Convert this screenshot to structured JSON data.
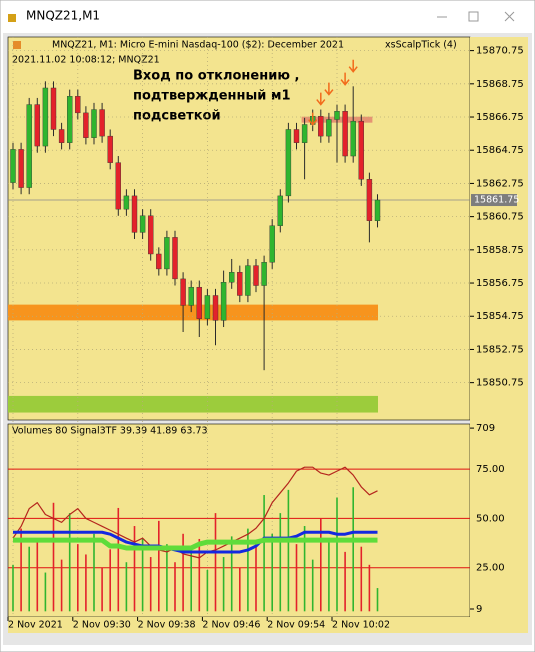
{
  "window": {
    "title": "MNQZ21,M1"
  },
  "chart_data": [
    {
      "type": "candlestick",
      "title": "MNQZ21, M1:  Micro E-mini Nasdaq-100 ($2): December 2021",
      "subtitle": "2021.11.02 10:08:12; MNQZ21",
      "indicator_name": "xsScalpTick (4)",
      "annotation": [
        "Вход по отклонению ,",
        "подтвержденный м1",
        "подсветкой"
      ],
      "categories": [
        "2 Nov 2021",
        null,
        null,
        null,
        null,
        null,
        null,
        null,
        "2 Nov 09:30",
        null,
        null,
        null,
        null,
        null,
        null,
        null,
        "2 Nov 09:38",
        null,
        null,
        null,
        null,
        null,
        null,
        null,
        "2 Nov 09:46",
        null,
        null,
        null,
        null,
        null,
        null,
        null,
        "2 Nov 09:54",
        null,
        null,
        null,
        null,
        null,
        null,
        null,
        "2 Nov 10:02",
        null,
        null,
        null,
        null,
        null
      ],
      "open": [
        15862.8,
        15864.8,
        15862.5,
        15867.5,
        15865.0,
        15868.5,
        15866.0,
        15865.2,
        15868.0,
        15867.0,
        15865.5,
        15867.2,
        15865.6,
        15864.0,
        15861.2,
        15862.0,
        15859.8,
        15860.8,
        15858.5,
        15857.6,
        15859.5,
        15857.0,
        15855.4,
        15856.5,
        15854.6,
        15856.0,
        15854.5,
        15856.8,
        15857.4,
        15856.0,
        15857.8,
        15856.6,
        15858.0,
        15860.2,
        15862.0,
        15866.0,
        15865.2,
        15866.3,
        15866.8,
        15865.6,
        15866.6,
        15867.1,
        15864.4,
        15866.5,
        15863.0,
        15860.5
      ],
      "high": [
        15865.2,
        15865.2,
        15867.9,
        15867.9,
        15868.9,
        15868.9,
        15866.4,
        15868.4,
        15868.4,
        15867.4,
        15867.6,
        15867.6,
        15866.0,
        15864.4,
        15862.4,
        15862.4,
        15861.2,
        15861.2,
        15858.9,
        15859.9,
        15859.9,
        15857.4,
        15856.9,
        15856.9,
        15856.4,
        15856.4,
        15857.5,
        15858.2,
        15857.8,
        15858.2,
        15858.2,
        15858.4,
        15860.6,
        15862.4,
        15866.4,
        15866.4,
        15866.7,
        15867.2,
        15867.2,
        15867.0,
        15867.5,
        15867.5,
        15868.6,
        15866.9,
        15863.4,
        15862.1
      ],
      "low": [
        15862.4,
        15862.1,
        15862.1,
        15864.6,
        15864.6,
        15865.6,
        15864.8,
        15864.8,
        15866.6,
        15865.1,
        15865.1,
        15865.2,
        15863.6,
        15860.8,
        15860.8,
        15859.4,
        15859.4,
        15858.1,
        15857.2,
        15857.2,
        15856.6,
        15853.8,
        15855.0,
        15853.5,
        15854.2,
        15853.0,
        15854.1,
        15856.4,
        15855.6,
        15855.6,
        15856.2,
        15851.5,
        15857.6,
        15859.8,
        15861.6,
        15864.8,
        15863.0,
        15865.9,
        15865.2,
        15865.2,
        15864.0,
        15864.0,
        15864.0,
        15862.6,
        15859.2,
        15860.1
      ],
      "close": [
        15864.8,
        15862.5,
        15867.5,
        15865.0,
        15868.5,
        15866.0,
        15865.2,
        15868.0,
        15867.0,
        15865.5,
        15867.2,
        15865.6,
        15864.0,
        15861.2,
        15862.0,
        15859.8,
        15860.8,
        15858.5,
        15857.6,
        15859.5,
        15857.0,
        15855.4,
        15856.5,
        15854.6,
        15856.0,
        15854.5,
        15856.8,
        15857.4,
        15856.0,
        15857.8,
        15856.6,
        15858.0,
        15860.2,
        15862.0,
        15866.0,
        15865.2,
        15866.3,
        15866.8,
        15865.6,
        15866.6,
        15867.1,
        15864.4,
        15866.5,
        15863.0,
        15860.5,
        15861.75
      ],
      "up_color": "#2fb52f",
      "down_color": "#e3222b",
      "ylim": [
        15848.5,
        15871.57
      ],
      "yticks": [
        15850.75,
        15852.75,
        15854.75,
        15856.75,
        15858.75,
        15860.75,
        15862.75,
        15864.75,
        15866.75,
        15868.75,
        15870.75
      ],
      "last_price": 15861.75,
      "zones": [
        {
          "range": [
            15854.5,
            15855.45
          ],
          "color": "#f7941d"
        },
        {
          "range": [
            15848.95,
            15849.95
          ],
          "color": "#9ccc3c"
        },
        {
          "range": [
            15866.41,
            15866.77
          ],
          "color": "#e07a6a"
        }
      ],
      "signals": {
        "indices": [
          37,
          38,
          39,
          41,
          42
        ],
        "prices": [
          15866.29,
          15867.5,
          15868.1,
          15868.7,
          15869.48
        ],
        "color": "#f26a1b"
      },
      "grid": true
    },
    {
      "type": "indicator",
      "title": "Volumes 80 Signal3TF 39.39 41.89 63.73",
      "series": [
        {
          "values": [
            180,
            320,
            250,
            280,
            150,
            420,
            200,
            380,
            260,
            220,
            300,
            170,
            240,
            400,
            190,
            330,
            280,
            210,
            350,
            260,
            190,
            300,
            240,
            280,
            160,
            380,
            210,
            290,
            170,
            320,
            260,
            450,
            300,
            380,
            470,
            260,
            330,
            200,
            360,
            270,
            440,
            230,
            480,
            250,
            180,
            90
          ],
          "axis": "y2"
        },
        {
          "values": [
            40,
            46,
            55,
            58,
            52,
            50,
            48,
            52,
            55,
            50,
            48,
            46,
            44,
            42,
            40,
            38,
            40,
            36,
            34,
            33,
            35,
            32,
            31,
            30,
            33,
            34,
            36,
            38,
            40,
            42,
            45,
            50,
            58,
            63,
            68,
            74,
            76,
            76,
            73,
            72,
            74,
            76,
            72,
            66,
            62,
            64
          ],
          "color": "#b5261e"
        },
        {
          "values": [
            43,
            43,
            43,
            43,
            43,
            43,
            43,
            43,
            43,
            43,
            43,
            43,
            42,
            40,
            38,
            37,
            36,
            36,
            36,
            35,
            34,
            33,
            33,
            33,
            33,
            33,
            33,
            33,
            33,
            34,
            36,
            40,
            40,
            40,
            40,
            41,
            43,
            43,
            43,
            43,
            42,
            42,
            43,
            43,
            43,
            43
          ],
          "color": "#1428e0"
        },
        {
          "values": [
            39,
            39,
            39,
            39,
            39,
            39,
            39,
            39,
            39,
            39,
            39,
            39,
            36,
            36,
            35,
            35,
            35,
            35,
            35,
            35,
            35,
            35,
            35,
            37,
            38,
            38,
            38,
            38,
            38,
            38,
            38,
            39,
            39,
            39,
            39,
            39,
            39,
            39,
            39,
            39,
            39,
            39,
            39,
            39,
            39,
            39
          ],
          "color": "#5fdc3a"
        }
      ],
      "ylim": [
        0,
        97.4
      ],
      "yticks": [
        {
          "value": 25,
          "label": "25.00"
        },
        {
          "value": 50,
          "label": "50.00"
        },
        {
          "value": 75,
          "label": "75.00"
        }
      ],
      "y2lim": [
        -22,
        721
      ],
      "y2ticks": [
        9,
        709
      ]
    }
  ]
}
